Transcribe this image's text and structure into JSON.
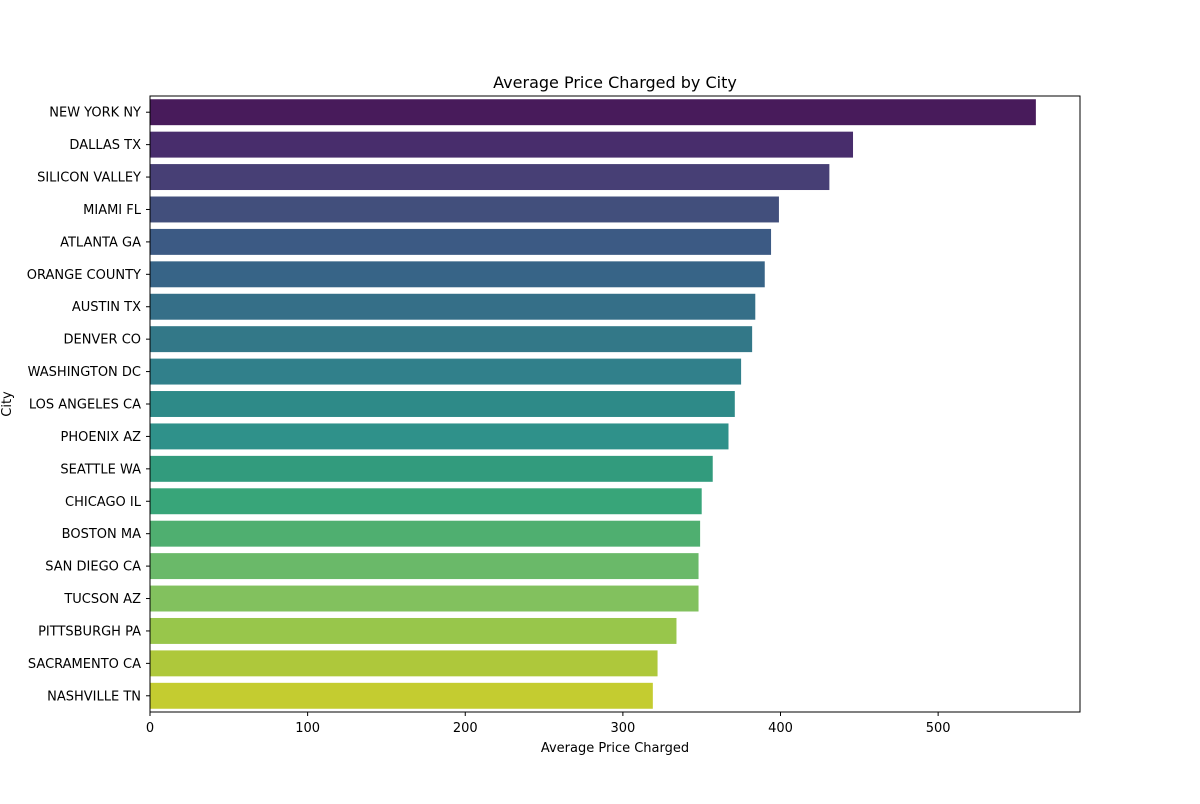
{
  "chart_data": {
    "type": "bar",
    "orientation": "horizontal",
    "title": "Average Price Charged by City",
    "xlabel": "Average Price Charged",
    "ylabel": "City",
    "xlim": [
      0,
      590
    ],
    "xticks": [
      0,
      100,
      200,
      300,
      400,
      500
    ],
    "grid": false,
    "legend": "none",
    "colormap": "viridis",
    "categories": [
      "NEW YORK NY",
      "DALLAS TX",
      "SILICON VALLEY",
      "MIAMI FL",
      "ATLANTA GA",
      "ORANGE COUNTY",
      "AUSTIN TX",
      "DENVER CO",
      "WASHINGTON DC",
      "LOS ANGELES CA",
      "PHOENIX AZ",
      "SEATTLE WA",
      "CHICAGO IL",
      "BOSTON MA",
      "SAN DIEGO CA",
      "TUCSON AZ",
      "PITTSBURGH PA",
      "SACRAMENTO CA",
      "NASHVILLE TN"
    ],
    "values": [
      562,
      446,
      431,
      399,
      394,
      390,
      384,
      382,
      375,
      371,
      367,
      357,
      350,
      349,
      348,
      348,
      334,
      322,
      319
    ],
    "colors": [
      "#481b5b",
      "#482d6c",
      "#473f75",
      "#424f7c",
      "#3c5a84",
      "#376487",
      "#356f88",
      "#337888",
      "#31808b",
      "#2e8a88",
      "#2f918a",
      "#329b7d",
      "#38a579",
      "#4faf70",
      "#6ab969",
      "#82c15e",
      "#98c64b",
      "#aec83b",
      "#c4cc30"
    ]
  }
}
